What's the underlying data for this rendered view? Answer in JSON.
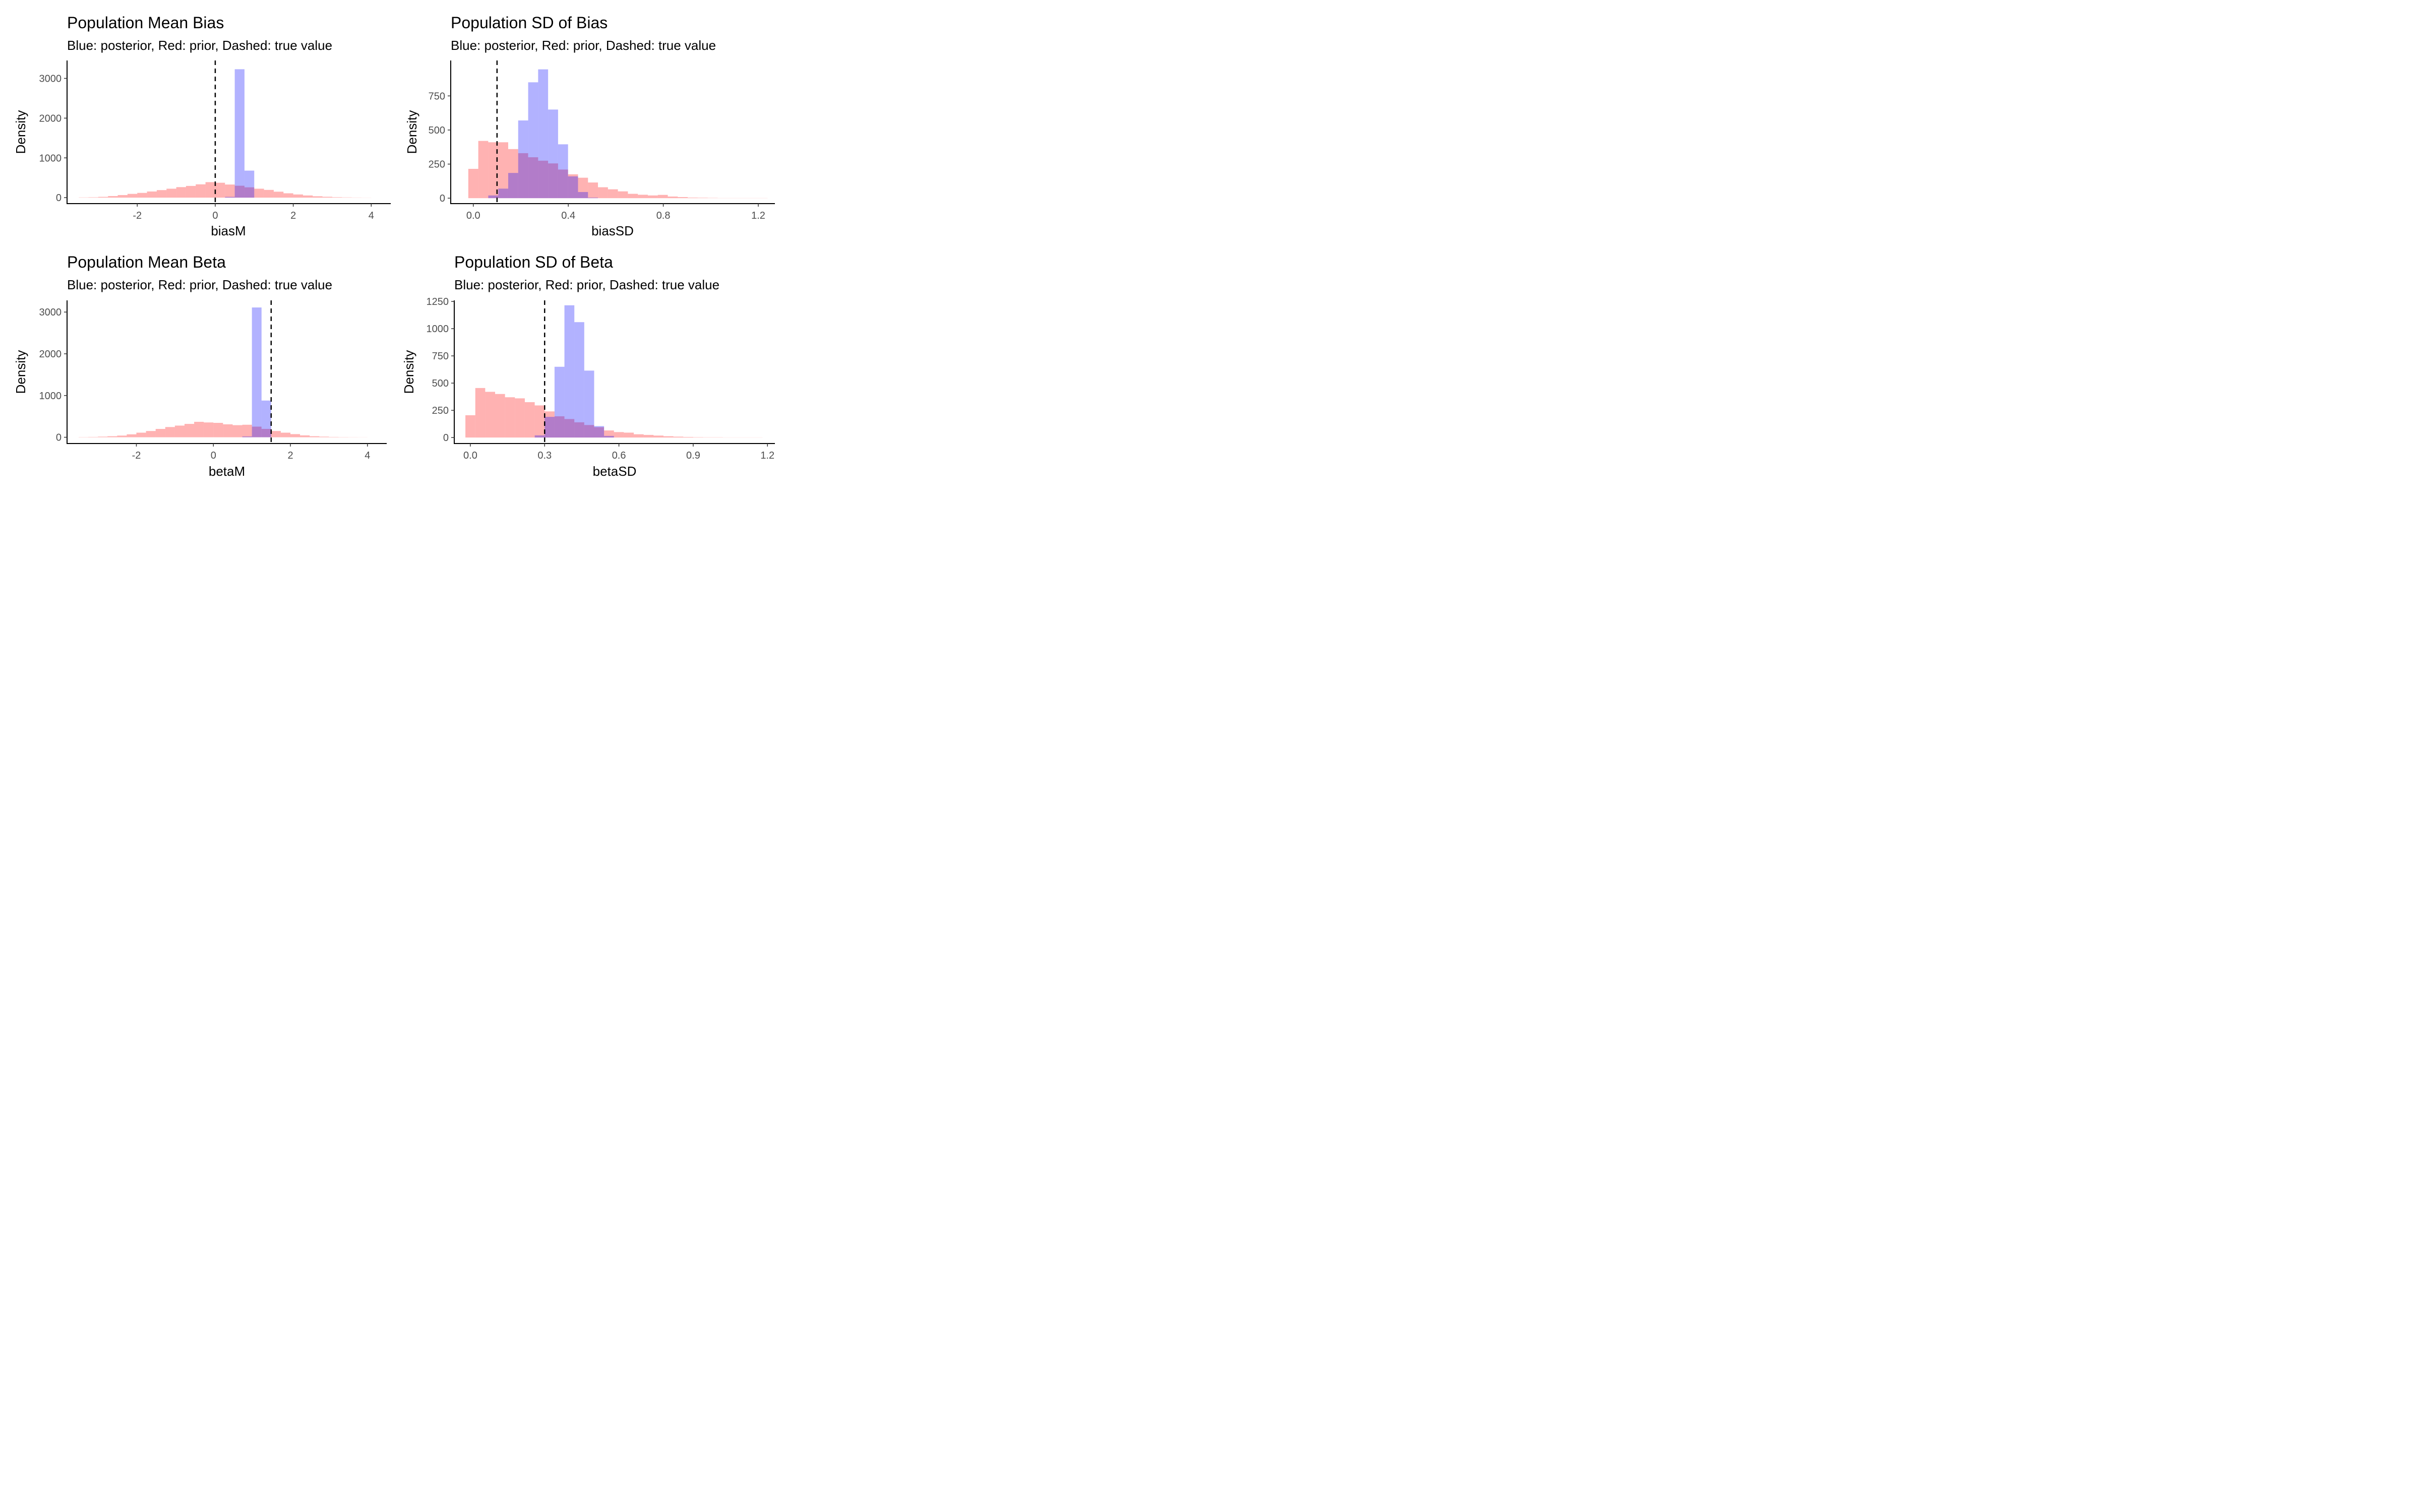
{
  "colors": {
    "posterior": "#0000ff",
    "prior": "#ff0000",
    "overlap_opacity": 0.3
  },
  "chart_data": [
    {
      "type": "bar",
      "title": "Population Mean Bias",
      "subtitle": "Blue: posterior, Red: prior, Dashed: true value",
      "xlabel": "biasM",
      "ylabel": "Density",
      "xlim": [
        -3.8,
        4.5
      ],
      "ylim": [
        -150,
        3450
      ],
      "xticks": [
        -2,
        0,
        2,
        4
      ],
      "xtick_labels": [
        "-2",
        "0",
        "2",
        "4"
      ],
      "yticks": [
        0,
        1000,
        2000,
        3000
      ],
      "ytick_labels": [
        "0",
        "1000",
        "2000",
        "3000"
      ],
      "true_value": 0,
      "series": [
        {
          "name": "prior",
          "bins": [
            [
              -3.5,
              -3.25,
              6
            ],
            [
              -3.25,
              -3.0,
              10
            ],
            [
              -3.0,
              -2.75,
              20
            ],
            [
              -2.75,
              -2.5,
              40
            ],
            [
              -2.5,
              -2.25,
              65
            ],
            [
              -2.25,
              -2.0,
              95
            ],
            [
              -2.0,
              -1.75,
              120
            ],
            [
              -1.75,
              -1.5,
              155
            ],
            [
              -1.5,
              -1.25,
              190
            ],
            [
              -1.25,
              -1.0,
              225
            ],
            [
              -1.0,
              -0.75,
              265
            ],
            [
              -0.75,
              -0.5,
              295
            ],
            [
              -0.5,
              -0.25,
              335
            ],
            [
              -0.25,
              0.0,
              390
            ],
            [
              0.0,
              0.25,
              375
            ],
            [
              0.25,
              0.5,
              330
            ],
            [
              0.5,
              0.75,
              300
            ],
            [
              0.75,
              1.0,
              260
            ],
            [
              1.0,
              1.25,
              225
            ],
            [
              1.25,
              1.5,
              195
            ],
            [
              1.5,
              1.75,
              150
            ],
            [
              1.75,
              2.0,
              110
            ],
            [
              2.0,
              2.25,
              80
            ],
            [
              2.25,
              2.5,
              55
            ],
            [
              2.5,
              2.75,
              35
            ],
            [
              2.75,
              3.0,
              22
            ],
            [
              3.0,
              3.25,
              12
            ],
            [
              3.25,
              3.5,
              7
            ],
            [
              3.5,
              3.75,
              4
            ],
            [
              3.75,
              4.0,
              2
            ]
          ]
        },
        {
          "name": "posterior",
          "bins": [
            [
              0.25,
              0.5,
              20
            ],
            [
              0.5,
              0.75,
              3230
            ],
            [
              0.75,
              1.0,
              680
            ]
          ]
        }
      ]
    },
    {
      "type": "bar",
      "title": "Population SD of Bias",
      "subtitle": "Blue: posterior, Red: prior, Dashed: true value",
      "xlabel": "biasSD",
      "ylabel": "Density",
      "xlim": [
        -0.095,
        1.27
      ],
      "ylim": [
        -40,
        1010
      ],
      "xticks": [
        0.0,
        0.4,
        0.8,
        1.2
      ],
      "xtick_labels": [
        "0.0",
        "0.4",
        "0.8",
        "1.2"
      ],
      "yticks": [
        0,
        250,
        500,
        750
      ],
      "ytick_labels": [
        "0",
        "250",
        "500",
        "750"
      ],
      "true_value": 0.1,
      "series": [
        {
          "name": "prior",
          "bins": [
            [
              -0.021,
              0.021,
              215
            ],
            [
              0.021,
              0.063,
              420
            ],
            [
              0.063,
              0.105,
              410
            ],
            [
              0.105,
              0.147,
              410
            ],
            [
              0.147,
              0.189,
              360
            ],
            [
              0.189,
              0.231,
              330
            ],
            [
              0.231,
              0.273,
              300
            ],
            [
              0.273,
              0.315,
              275
            ],
            [
              0.315,
              0.357,
              255
            ],
            [
              0.357,
              0.399,
              210
            ],
            [
              0.399,
              0.441,
              175
            ],
            [
              0.441,
              0.483,
              150
            ],
            [
              0.483,
              0.525,
              115
            ],
            [
              0.525,
              0.567,
              80
            ],
            [
              0.567,
              0.609,
              65
            ],
            [
              0.609,
              0.651,
              50
            ],
            [
              0.651,
              0.693,
              32
            ],
            [
              0.693,
              0.735,
              25
            ],
            [
              0.735,
              0.777,
              20
            ],
            [
              0.777,
              0.819,
              24
            ],
            [
              0.819,
              0.861,
              12
            ],
            [
              0.861,
              0.903,
              8
            ],
            [
              0.903,
              0.945,
              4
            ],
            [
              0.945,
              0.987,
              3
            ],
            [
              0.987,
              1.029,
              2
            ],
            [
              1.029,
              1.071,
              1
            ],
            [
              1.071,
              1.113,
              1
            ],
            [
              1.113,
              1.155,
              1
            ],
            [
              1.155,
              1.197,
              1
            ],
            [
              1.197,
              1.239,
              1
            ]
          ]
        },
        {
          "name": "posterior",
          "bins": [
            [
              0.063,
              0.105,
              20
            ],
            [
              0.105,
              0.147,
              70
            ],
            [
              0.147,
              0.189,
              185
            ],
            [
              0.189,
              0.231,
              570
            ],
            [
              0.231,
              0.273,
              850
            ],
            [
              0.273,
              0.315,
              945
            ],
            [
              0.315,
              0.357,
              650
            ],
            [
              0.357,
              0.399,
              395
            ],
            [
              0.399,
              0.441,
              160
            ],
            [
              0.441,
              0.483,
              45
            ],
            [
              0.483,
              0.525,
              4
            ]
          ]
        }
      ]
    },
    {
      "type": "bar",
      "title": "Population Mean Beta",
      "subtitle": "Blue: posterior, Red: prior, Dashed: true value",
      "xlabel": "betaM",
      "ylabel": "Density",
      "xlim": [
        -3.8,
        4.5
      ],
      "ylim": [
        -150,
        3280
      ],
      "xticks": [
        -2,
        0,
        2,
        4
      ],
      "xtick_labels": [
        "-2",
        "0",
        "2",
        "4"
      ],
      "yticks": [
        0,
        1000,
        2000,
        3000
      ],
      "ytick_labels": [
        "0",
        "1000",
        "2000",
        "3000"
      ],
      "true_value": 1.5,
      "series": [
        {
          "name": "prior",
          "bins": [
            [
              -3.5,
              -3.25,
              5
            ],
            [
              -3.25,
              -3.0,
              8
            ],
            [
              -3.0,
              -2.75,
              15
            ],
            [
              -2.75,
              -2.5,
              25
            ],
            [
              -2.5,
              -2.25,
              40
            ],
            [
              -2.25,
              -2.0,
              70
            ],
            [
              -2.0,
              -1.75,
              110
            ],
            [
              -1.75,
              -1.5,
              150
            ],
            [
              -1.5,
              -1.25,
              200
            ],
            [
              -1.25,
              -1.0,
              245
            ],
            [
              -1.0,
              -0.75,
              280
            ],
            [
              -0.75,
              -0.5,
              320
            ],
            [
              -0.5,
              -0.25,
              370
            ],
            [
              -0.25,
              0.0,
              355
            ],
            [
              0.0,
              0.25,
              345
            ],
            [
              0.25,
              0.5,
              310
            ],
            [
              0.5,
              0.75,
              290
            ],
            [
              0.75,
              1.0,
              300
            ],
            [
              1.0,
              1.25,
              255
            ],
            [
              1.25,
              1.5,
              200
            ],
            [
              1.5,
              1.75,
              150
            ],
            [
              1.75,
              2.0,
              110
            ],
            [
              2.0,
              2.25,
              75
            ],
            [
              2.25,
              2.5,
              45
            ],
            [
              2.5,
              2.75,
              25
            ],
            [
              2.75,
              3.0,
              15
            ],
            [
              3.0,
              3.25,
              8
            ],
            [
              3.25,
              3.5,
              5
            ],
            [
              3.5,
              3.75,
              3
            ],
            [
              3.75,
              4.0,
              2
            ]
          ]
        },
        {
          "name": "posterior",
          "bins": [
            [
              0.75,
              1.0,
              20
            ],
            [
              1.0,
              1.25,
              3110
            ],
            [
              1.25,
              1.5,
              880
            ]
          ]
        }
      ]
    },
    {
      "type": "bar",
      "title": "Population SD of Beta",
      "subtitle": "Blue: posterior, Red: prior, Dashed: true value",
      "xlabel": "betaSD",
      "ylabel": "Density",
      "xlim": [
        -0.065,
        1.23
      ],
      "ylim": [
        -55,
        1260
      ],
      "xticks": [
        0.0,
        0.3,
        0.6,
        0.9,
        1.2
      ],
      "xtick_labels": [
        "0.0",
        "0.3",
        "0.6",
        "0.9",
        "1.2"
      ],
      "yticks": [
        0,
        250,
        500,
        750,
        1000,
        1250
      ],
      "ytick_labels": [
        "0",
        "250",
        "500",
        "750",
        "1000",
        "1250"
      ],
      "true_value": 0.3,
      "series": [
        {
          "name": "prior",
          "bins": [
            [
              -0.02,
              0.02,
              205
            ],
            [
              0.02,
              0.06,
              455
            ],
            [
              0.06,
              0.1,
              420
            ],
            [
              0.1,
              0.14,
              400
            ],
            [
              0.14,
              0.18,
              370
            ],
            [
              0.18,
              0.22,
              360
            ],
            [
              0.22,
              0.26,
              325
            ],
            [
              0.26,
              0.3,
              295
            ],
            [
              0.3,
              0.34,
              240
            ],
            [
              0.34,
              0.38,
              195
            ],
            [
              0.38,
              0.42,
              170
            ],
            [
              0.42,
              0.46,
              140
            ],
            [
              0.46,
              0.5,
              115
            ],
            [
              0.5,
              0.54,
              95
            ],
            [
              0.54,
              0.58,
              65
            ],
            [
              0.58,
              0.62,
              50
            ],
            [
              0.62,
              0.66,
              45
            ],
            [
              0.66,
              0.7,
              30
            ],
            [
              0.7,
              0.74,
              24
            ],
            [
              0.74,
              0.78,
              18
            ],
            [
              0.78,
              0.82,
              12
            ],
            [
              0.82,
              0.86,
              8
            ],
            [
              0.86,
              0.9,
              5
            ],
            [
              0.9,
              0.94,
              3
            ],
            [
              0.94,
              0.98,
              2
            ],
            [
              0.98,
              1.02,
              2
            ],
            [
              1.02,
              1.06,
              1
            ],
            [
              1.06,
              1.1,
              1
            ],
            [
              1.1,
              1.14,
              1
            ],
            [
              1.14,
              1.18,
              1
            ]
          ]
        },
        {
          "name": "posterior",
          "bins": [
            [
              0.26,
              0.3,
              20
            ],
            [
              0.3,
              0.34,
              190
            ],
            [
              0.34,
              0.38,
              650
            ],
            [
              0.38,
              0.42,
              1215
            ],
            [
              0.42,
              0.46,
              1060
            ],
            [
              0.46,
              0.5,
              615
            ],
            [
              0.5,
              0.54,
              105
            ],
            [
              0.54,
              0.58,
              15
            ]
          ]
        }
      ]
    }
  ]
}
